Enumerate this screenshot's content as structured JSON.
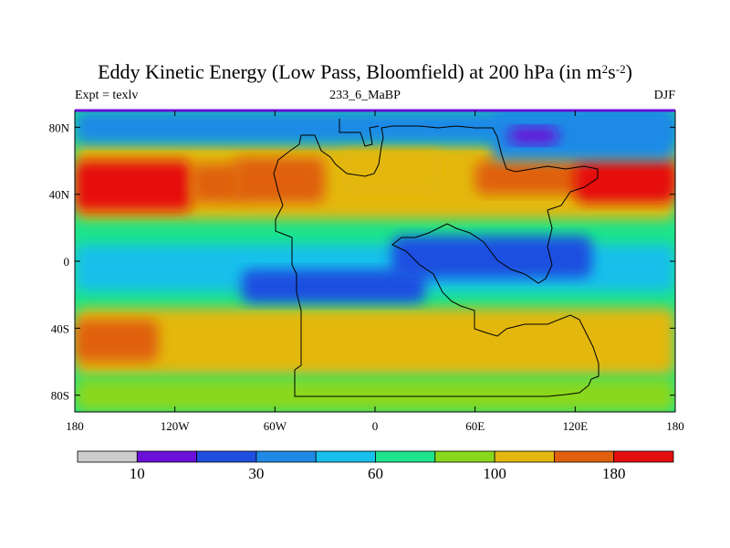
{
  "title": {
    "prefix": "Eddy Kinetic Energy (Low Pass, Bloomfield) at 200 hPa (in m",
    "exp1": "2",
    "mid": "s",
    "exp2": "-2",
    "suffix": ")"
  },
  "subtitle_left": "Expt = texlv",
  "subtitle_center": "233_6_MaBP",
  "subtitle_right": "DJF",
  "axes": {
    "x_ticks": [
      "180",
      "120W",
      "60W",
      "0",
      "60E",
      "120E",
      "180"
    ],
    "x_values": [
      -180,
      -120,
      -60,
      0,
      60,
      120,
      180
    ],
    "y_ticks": [
      "80N",
      "40N",
      "0",
      "40S",
      "80S"
    ],
    "y_values": [
      80,
      40,
      0,
      -40,
      -80
    ],
    "lon_range": [
      -180,
      180
    ],
    "lat_range": [
      -90,
      90
    ]
  },
  "colorbar": {
    "colors": [
      "#cccccc",
      "#6a10d8",
      "#1f4fe0",
      "#1f8ae6",
      "#16c0ea",
      "#1ee38c",
      "#8ad81c",
      "#e3b70e",
      "#e0600e",
      "#e50e0e"
    ],
    "labels": [
      "10",
      "30",
      "60",
      "100",
      "180"
    ],
    "label_after_box": [
      1,
      3,
      5,
      7,
      9
    ]
  },
  "chart_data": {
    "type": "heatmap",
    "variable": "Eddy Kinetic Energy (Low Pass, Bloomfield)",
    "level": "200 hPa",
    "units": "m2s-2",
    "season": "DJF",
    "experiment": "texlv",
    "case": "233_6_MaBP",
    "contour_levels": [
      10,
      20,
      30,
      45,
      60,
      80,
      100,
      140,
      180
    ],
    "regions": [
      {
        "lon": [
          -180,
          180
        ],
        "lat": [
          -90,
          90
        ],
        "value": 70
      },
      {
        "lon": [
          -180,
          180
        ],
        "lat": [
          5,
          30
        ],
        "value": 70
      },
      {
        "lon": [
          -180,
          180
        ],
        "lat": [
          -30,
          -12
        ],
        "value": 70
      },
      {
        "lon": [
          -180,
          180
        ],
        "lat": [
          -68,
          -28
        ],
        "value": 110
      },
      {
        "lon": [
          -180,
          180
        ],
        "lat": [
          25,
          70
        ],
        "value": 110
      },
      {
        "lon": [
          -180,
          -130
        ],
        "lat": [
          -60,
          -35
        ],
        "value": 150
      },
      {
        "lon": [
          -180,
          180
        ],
        "lat": [
          -90,
          -70
        ],
        "value": 90
      },
      {
        "lon": [
          -180,
          180
        ],
        "lat": [
          70,
          90
        ],
        "value": 35
      },
      {
        "lon": [
          -180,
          -110
        ],
        "lat": [
          30,
          60
        ],
        "value": 190
      },
      {
        "lon": [
          -110,
          -80
        ],
        "lat": [
          35,
          58
        ],
        "value": 150
      },
      {
        "lon": [
          -85,
          -30
        ],
        "lat": [
          35,
          62
        ],
        "value": 160
      },
      {
        "lon": [
          -20,
          40
        ],
        "lat": [
          40,
          65
        ],
        "value": 110
      },
      {
        "lon": [
          60,
          180
        ],
        "lat": [
          40,
          60
        ],
        "value": 160
      },
      {
        "lon": [
          120,
          180
        ],
        "lat": [
          35,
          60
        ],
        "value": 190
      },
      {
        "lon": [
          -180,
          180
        ],
        "lat": [
          -18,
          10
        ],
        "value": 45
      },
      {
        "lon": [
          -80,
          30
        ],
        "lat": [
          -25,
          -5
        ],
        "value": 20
      },
      {
        "lon": [
          10,
          130
        ],
        "lat": [
          -10,
          15
        ],
        "value": 20
      },
      {
        "lon": [
          70,
          180
        ],
        "lat": [
          60,
          90
        ],
        "value": 30
      },
      {
        "lon": [
          80,
          110
        ],
        "lat": [
          70,
          80
        ],
        "value": 15
      }
    ]
  }
}
